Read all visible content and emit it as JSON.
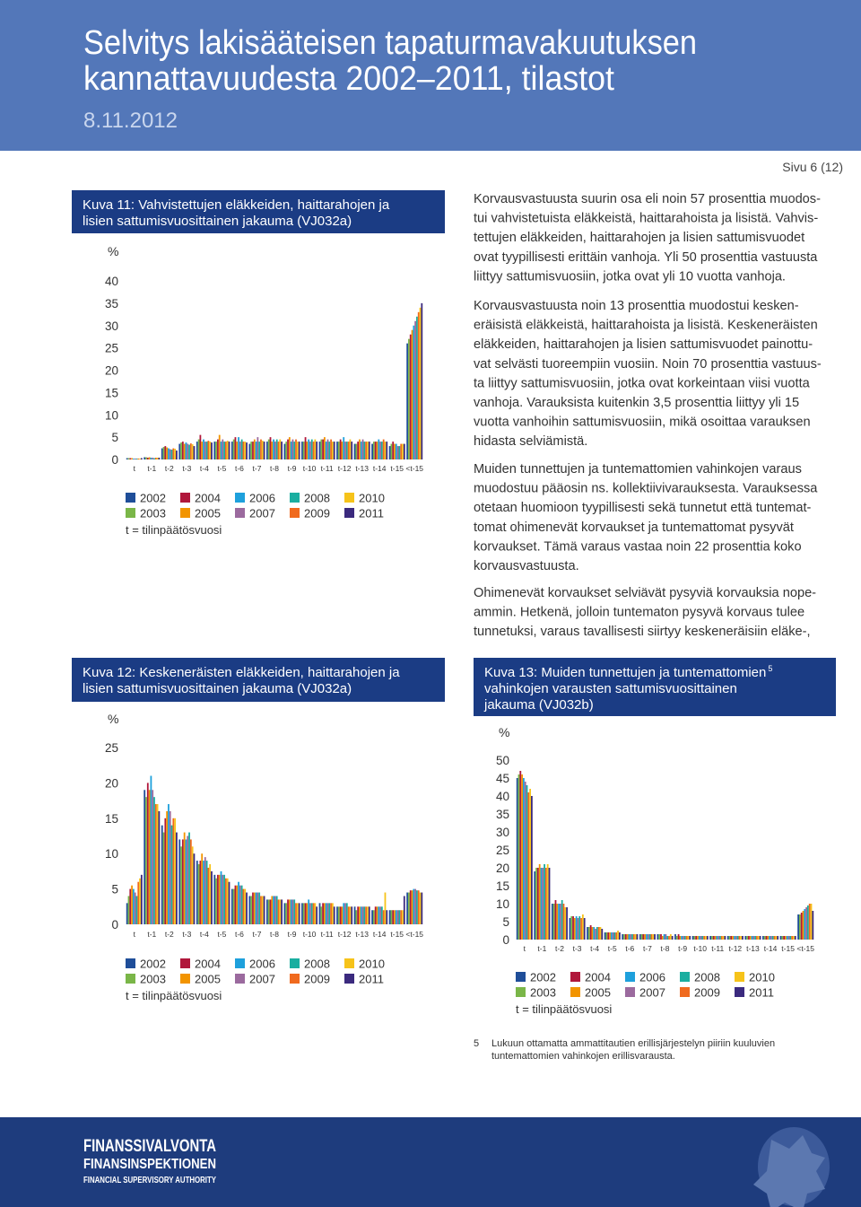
{
  "header": {
    "title_lines": [
      "Selvitys lakisääteisen tapaturmavakuutuksen",
      "kannattavuudesta 2002–2011, tilastot"
    ],
    "date": "8.11.2012"
  },
  "page_number": "Sivu 6 (12)",
  "paragraphs": [
    [
      "Korvausvastuusta suurin osa eli noin 57 prosenttia muodos-",
      "tui vahvistetuista eläkkeistä, haittarahoista ja lisistä. Vahvis-",
      "tettujen eläkkeiden, haittarahojen ja lisien sattumisvuodet",
      "ovat tyypillisesti erittäin vanhoja. Yli 50 prosenttia vastuusta",
      "liittyy sattumisvuosiin, jotka ovat yli 10 vuotta vanhoja."
    ],
    [
      "Korvausvastuusta noin 13 prosenttia muodostui kesken-",
      "eräisistä eläkkeistä, haittarahoista ja lisistä. Keskeneräisten",
      "eläkkeiden, haittarahojen ja lisien sattumisvuodet painottu-",
      "vat selvästi tuoreempiin vuosiin. Noin 70 prosenttia vastuus-",
      "ta liittyy sattumisvuosiin, jotka ovat korkeintaan viisi vuotta",
      "vanhoja. Varauksista kuitenkin 3,5 prosenttia liittyy yli 15",
      "vuotta vanhoihin sattumisvuosiin, mikä osoittaa varauksen",
      "hidasta selviämistä."
    ],
    [
      "Muiden tunnettujen ja tuntemattomien vahinkojen varaus",
      "muodostuu pääosin ns. kollektiivivarauksesta. Varauksessa",
      "otetaan huomioon tyypillisesti sekä tunnetut että tuntemat-",
      "tomat ohimenevät korvaukset ja tuntemattomat pysyvät",
      "korvaukset. Tämä varaus vastaa noin 22 prosenttia koko",
      "korvausvastuusta."
    ],
    [
      "Ohimenevät korvaukset selviävät pysyviä korvauksia nope-",
      "ammin. Hetkenä, jolloin tuntematon pysyvä korvaus tulee",
      "tunnetuksi, varaus tavallisesti siirtyy keskeneräisiin eläke-,"
    ]
  ],
  "chart_data": [
    {
      "type": "bar",
      "title_lines": [
        "Kuva 11: Vahvistettujen eläkkeiden, haittarahojen ja",
        "lisien sattumisvuosittainen jakauma (VJ032a)"
      ],
      "y_label": "%",
      "note": "t = tilinpäätösvuosi",
      "categories": [
        "t",
        "t-1",
        "t-2",
        "t-3",
        "t-4",
        "t-5",
        "t-6",
        "t-7",
        "t-8",
        "t-9",
        "t-10",
        "t-11",
        "t-12",
        "t-13",
        "t-14",
        "t-15",
        "<t-15"
      ],
      "ylim": [
        0,
        40
      ],
      "yticks": [
        0,
        5,
        10,
        15,
        20,
        25,
        30,
        35,
        40
      ],
      "series": [
        {
          "name": "2002",
          "color": "#1f4e99",
          "values": [
            0.3,
            0.5,
            2.5,
            3.5,
            4,
            4,
            4,
            3.5,
            4,
            3.5,
            4,
            4,
            4,
            3.5,
            3.5,
            3,
            26
          ]
        },
        {
          "name": "2003",
          "color": "#7ab648",
          "values": [
            0.3,
            0.5,
            2.8,
            3.8,
            4.5,
            4,
            4.5,
            4,
            4.5,
            4,
            4,
            4.5,
            4,
            3.5,
            4,
            3.5,
            27
          ]
        },
        {
          "name": "2004",
          "color": "#b0173b",
          "values": [
            0.3,
            0.4,
            3,
            4,
            5.5,
            4.5,
            5,
            4,
            5,
            4.5,
            5,
            4.5,
            4.5,
            4,
            4,
            4,
            28
          ]
        },
        {
          "name": "2005",
          "color": "#f29400",
          "values": [
            0.3,
            0.5,
            2.7,
            3.5,
            4,
            5.5,
            4,
            4.5,
            4,
            5,
            4,
            5,
            4,
            4.5,
            4,
            3.5,
            29
          ]
        },
        {
          "name": "2006",
          "color": "#1ea0dc",
          "values": [
            0.2,
            0.4,
            2.5,
            3.8,
            4.5,
            4,
            5,
            4,
            4.5,
            4,
            4.5,
            4,
            5,
            4,
            4.5,
            3.5,
            30
          ]
        },
        {
          "name": "2007",
          "color": "#9b6a9e",
          "values": [
            0.2,
            0.4,
            2.3,
            3.5,
            4,
            4.5,
            4,
            5,
            4,
            4.5,
            4,
            4.5,
            4,
            4.5,
            4,
            3,
            31
          ]
        },
        {
          "name": "2008",
          "color": "#1aaea0",
          "values": [
            0.2,
            0.3,
            2.2,
            3.3,
            4,
            4,
            4.5,
            4,
            4.5,
            4,
            4.5,
            4,
            4,
            4,
            4,
            3,
            32
          ]
        },
        {
          "name": "2009",
          "color": "#f06a1e",
          "values": [
            0.2,
            0.4,
            2.5,
            3.6,
            4.2,
            4,
            4,
            4.5,
            4,
            4.5,
            4,
            4.5,
            4,
            4,
            4.5,
            3.5,
            33
          ]
        },
        {
          "name": "2010",
          "color": "#f6c31a",
          "values": [
            0.2,
            0.4,
            2.4,
            3.4,
            4,
            4.2,
            4,
            4.2,
            4.5,
            4,
            4.5,
            4,
            4.5,
            4,
            4,
            3.5,
            34
          ]
        },
        {
          "name": "2011",
          "color": "#3b2a7e",
          "values": [
            0.3,
            0.4,
            2,
            3,
            3.8,
            4,
            3.8,
            4,
            4,
            4,
            4,
            4,
            4,
            4,
            4,
            3.5,
            35
          ]
        }
      ]
    },
    {
      "type": "bar",
      "title_lines": [
        "Kuva 12: Keskeneräisten eläkkeiden, haittarahojen ja",
        "lisien sattumisvuosittainen jakauma (VJ032a)"
      ],
      "y_label": "%",
      "note": "t = tilinpäätösvuosi",
      "categories": [
        "t",
        "t-1",
        "t-2",
        "t-3",
        "t-4",
        "t-5",
        "t-6",
        "t-7",
        "t-8",
        "t-9",
        "t-10",
        "t-11",
        "t-12",
        "t-13",
        "t-14",
        "t-15",
        "<t-15"
      ],
      "ylim": [
        0,
        25
      ],
      "yticks": [
        0,
        5,
        10,
        15,
        20,
        25
      ],
      "series": [
        {
          "name": "2002",
          "color": "#1f4e99",
          "values": [
            3,
            19,
            14,
            12,
            9,
            7,
            5,
            4,
            3.5,
            3,
            3,
            3,
            2.5,
            2.5,
            2,
            2,
            4.5
          ]
        },
        {
          "name": "2003",
          "color": "#7ab648",
          "values": [
            4,
            18,
            13,
            11,
            8.5,
            6.5,
            5,
            4,
            3.5,
            3,
            3,
            2.5,
            2.5,
            2,
            2,
            2,
            4.5
          ]
        },
        {
          "name": "2004",
          "color": "#b0173b",
          "values": [
            5,
            20,
            15,
            12,
            9,
            7,
            5.5,
            4.5,
            3.5,
            3.5,
            3,
            3,
            2.5,
            2.5,
            2.5,
            2,
            4.8
          ]
        },
        {
          "name": "2005",
          "color": "#f29400",
          "values": [
            5.5,
            19,
            16,
            13,
            10,
            7,
            5.5,
            4.5,
            4,
            3.5,
            3,
            3,
            2.5,
            2.5,
            2.5,
            2,
            4.8
          ]
        },
        {
          "name": "2006",
          "color": "#1ea0dc",
          "values": [
            5,
            21,
            17,
            12,
            9,
            7.5,
            6,
            4.5,
            4,
            3.5,
            3.5,
            3,
            3,
            2.5,
            2.5,
            2,
            5
          ]
        },
        {
          "name": "2007",
          "color": "#9b6a9e",
          "values": [
            4.5,
            19,
            16,
            12.5,
            9.5,
            7,
            5.5,
            4.5,
            4,
            3.5,
            3,
            3,
            3,
            2.5,
            2.5,
            2,
            5
          ]
        },
        {
          "name": "2008",
          "color": "#1aaea0",
          "values": [
            4,
            18,
            14,
            13,
            9,
            7,
            5.5,
            4.5,
            4,
            3.5,
            3,
            3,
            3,
            2.5,
            2.5,
            2,
            4.8
          ]
        },
        {
          "name": "2009",
          "color": "#f06a1e",
          "values": [
            6,
            17,
            15,
            12,
            8,
            6.5,
            5,
            4,
            3.5,
            3,
            3,
            3,
            2.5,
            2.5,
            2,
            2,
            4.8
          ]
        },
        {
          "name": "2010",
          "color": "#f6c31a",
          "values": [
            6.5,
            17,
            15,
            11,
            8.5,
            6.5,
            5,
            4,
            3.5,
            3,
            3,
            3,
            2.5,
            2.5,
            4.5,
            2,
            4.5
          ]
        },
        {
          "name": "2011",
          "color": "#3b2a7e",
          "values": [
            7,
            16,
            13,
            10,
            7.5,
            6,
            4.5,
            4,
            3.5,
            3,
            2.5,
            2.5,
            2.5,
            2.5,
            2,
            4,
            4.5
          ]
        }
      ]
    },
    {
      "type": "bar",
      "title_lines": [
        "Kuva 13: Muiden tunnettujen ja tuntemattomien",
        "vahinkojen varausten sattumisvuosittainen",
        "jakauma (VJ032b)"
      ],
      "title_note": "5",
      "y_label": "%",
      "note": "t = tilinpäätösvuosi",
      "categories": [
        "t",
        "t-1",
        "t-2",
        "t-3",
        "t-4",
        "t-5",
        "t-6",
        "t-7",
        "t-8",
        "t-9",
        "t-10",
        "t-11",
        "t-12",
        "t-13",
        "t-14",
        "t-15",
        "<t-15"
      ],
      "ylim": [
        0,
        50
      ],
      "yticks": [
        0,
        5,
        10,
        15,
        20,
        25,
        30,
        35,
        40,
        45,
        50
      ],
      "series": [
        {
          "name": "2002",
          "color": "#1f4e99",
          "values": [
            45,
            19,
            10,
            6,
            3.5,
            2,
            1.5,
            1.5,
            1.5,
            1.5,
            1,
            1,
            1,
            1,
            1,
            1,
            7
          ]
        },
        {
          "name": "2003",
          "color": "#7ab648",
          "values": [
            46,
            20,
            10,
            6.5,
            3.5,
            2,
            1.5,
            1.5,
            1.5,
            1,
            1,
            1,
            1,
            1,
            1,
            1,
            7
          ]
        },
        {
          "name": "2004",
          "color": "#b0173b",
          "values": [
            47,
            20,
            11,
            6.5,
            4,
            2,
            1.5,
            1.5,
            1.5,
            1.5,
            1,
            1,
            1,
            1,
            1,
            1,
            7.5
          ]
        },
        {
          "name": "2005",
          "color": "#f29400",
          "values": [
            46,
            21,
            10,
            6,
            3.5,
            2,
            1.5,
            1.5,
            1,
            1,
            1,
            1,
            1,
            1,
            1,
            1,
            8
          ]
        },
        {
          "name": "2006",
          "color": "#1ea0dc",
          "values": [
            45,
            20,
            10,
            6.5,
            3.5,
            2,
            1.5,
            1.5,
            1.5,
            1,
            1,
            1,
            1,
            1,
            1,
            1,
            8.5
          ]
        },
        {
          "name": "2007",
          "color": "#9b6a9e",
          "values": [
            44,
            20,
            10,
            6,
            3,
            2,
            1.5,
            1.5,
            1.5,
            1,
            1,
            1,
            1,
            1,
            1,
            1,
            9
          ]
        },
        {
          "name": "2008",
          "color": "#1aaea0",
          "values": [
            43,
            21,
            11,
            6.5,
            3.5,
            2,
            1.5,
            1.5,
            1,
            1,
            1,
            1,
            1,
            1,
            1,
            1,
            9.5
          ]
        },
        {
          "name": "2009",
          "color": "#f06a1e",
          "values": [
            41,
            20,
            10,
            6,
            3.5,
            2,
            1.5,
            1.5,
            1,
            1,
            1,
            1,
            1,
            1,
            1,
            1,
            10
          ]
        },
        {
          "name": "2010",
          "color": "#f6c31a",
          "values": [
            42,
            21,
            9,
            7,
            3.5,
            2.5,
            1.5,
            1.5,
            1.5,
            1,
            1,
            1,
            1,
            1,
            1,
            1,
            10
          ]
        },
        {
          "name": "2011",
          "color": "#3b2a7e",
          "values": [
            40,
            20,
            9,
            6,
            3,
            2,
            1.5,
            1.5,
            1,
            1,
            1,
            1,
            1,
            1,
            1,
            1,
            8
          ]
        }
      ]
    }
  ],
  "footnote": {
    "marker": "5",
    "lines": [
      "Lukuun ottamatta ammattitautien erillisjärjestelyn piiriin kuuluvien",
      "tuntemattomien vahinkojen erillisvarausta."
    ]
  },
  "footer": {
    "lines": [
      "FINANSSIVALVONTA",
      "FINANSINSPEKTIONEN",
      "FINANCIAL SUPERVISORY AUTHORITY"
    ]
  }
}
